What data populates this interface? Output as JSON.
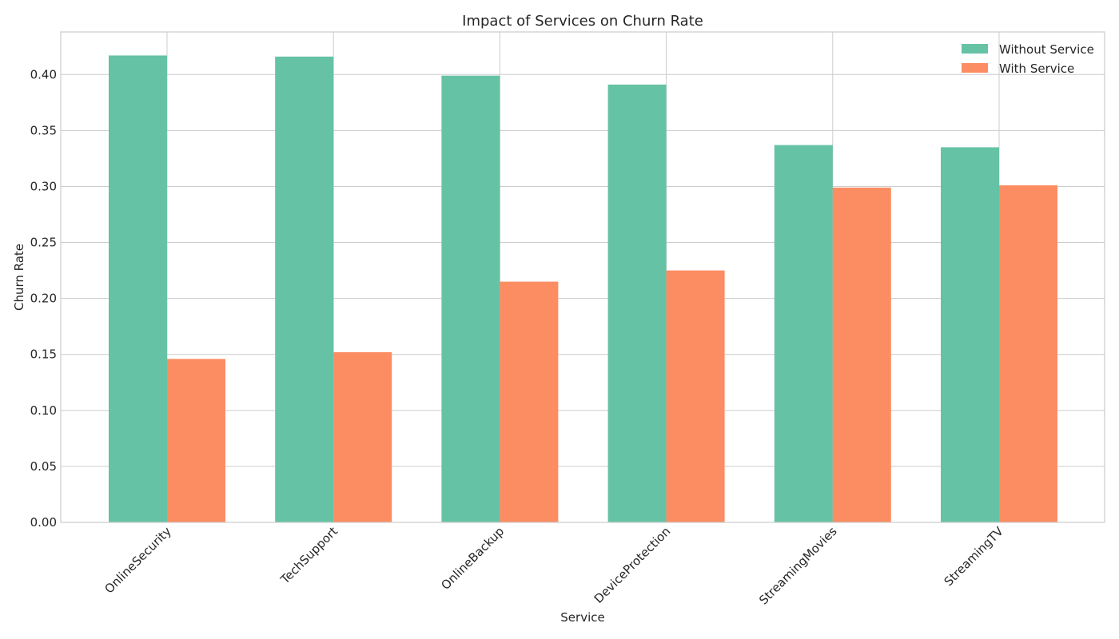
{
  "chart_data": {
    "type": "bar",
    "title": "Impact of Services on Churn Rate",
    "xlabel": "Service",
    "ylabel": "Churn Rate",
    "categories": [
      "OnlineSecurity",
      "TechSupport",
      "OnlineBackup",
      "DeviceProtection",
      "StreamingMovies",
      "StreamingTV"
    ],
    "series": [
      {
        "name": "Without Service",
        "color": "#66c2a5",
        "values": [
          0.417,
          0.416,
          0.399,
          0.391,
          0.337,
          0.335
        ]
      },
      {
        "name": "With Service",
        "color": "#fc8d62",
        "values": [
          0.146,
          0.152,
          0.215,
          0.225,
          0.299,
          0.301
        ]
      }
    ],
    "ylim": [
      0,
      0.438
    ],
    "yticks": [
      "0.00",
      "0.05",
      "0.10",
      "0.15",
      "0.20",
      "0.25",
      "0.30",
      "0.35",
      "0.40"
    ],
    "grid": true,
    "legend_position": "top-right"
  }
}
